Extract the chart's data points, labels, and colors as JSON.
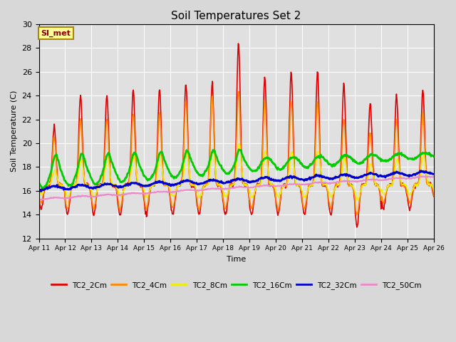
{
  "title": "Soil Temperatures Set 2",
  "xlabel": "Time",
  "ylabel": "Soil Temperature (C)",
  "ylim": [
    12,
    30
  ],
  "yticks": [
    12,
    14,
    16,
    18,
    20,
    22,
    24,
    26,
    28,
    30
  ],
  "annotation_text": "SI_met",
  "annotation_bg": "#ffff99",
  "annotation_border": "#aa8800",
  "fig_bg": "#d8d8d8",
  "plot_bg": "#e0e0e0",
  "series": {
    "TC2_2Cm": {
      "color": "#dd0000",
      "lw": 1.2
    },
    "TC2_4Cm": {
      "color": "#ff8800",
      "lw": 1.2
    },
    "TC2_8Cm": {
      "color": "#eeee00",
      "lw": 1.2
    },
    "TC2_16Cm": {
      "color": "#00cc00",
      "lw": 2.0
    },
    "TC2_32Cm": {
      "color": "#0000cc",
      "lw": 2.0
    },
    "TC2_50Cm": {
      "color": "#ee88cc",
      "lw": 1.5
    }
  },
  "x_tick_labels": [
    "Apr 11",
    "Apr 12",
    "Apr 13",
    "Apr 14",
    "Apr 15",
    "Apr 16",
    "Apr 17",
    "Apr 18",
    "Apr 19",
    "Apr 20",
    "Apr 21",
    "Apr 22",
    "Apr 23",
    "Apr 24",
    "Apr 25",
    "Apr 26"
  ],
  "num_days": 15,
  "pts_per_day": 48
}
